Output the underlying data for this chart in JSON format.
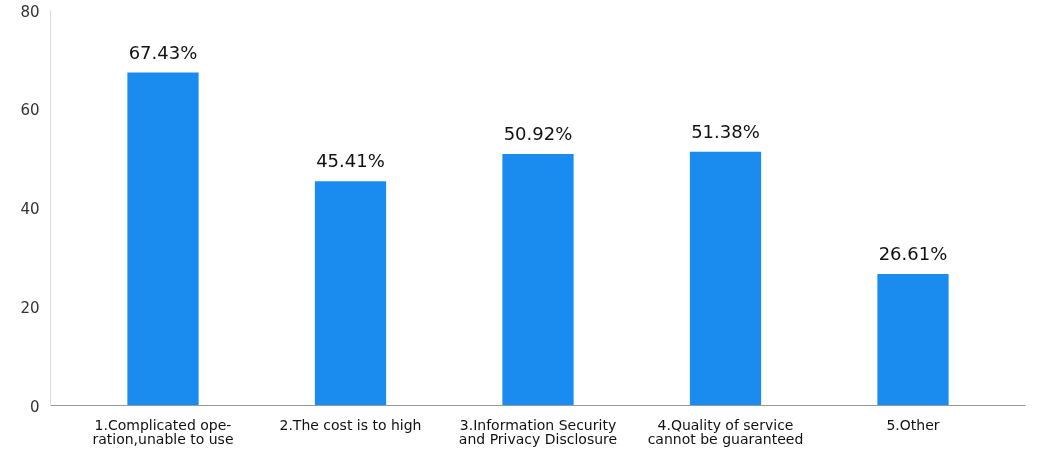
{
  "chart_data": {
    "type": "bar",
    "categories": [
      "1.Complicated ope-\nration,unable to use",
      "2.The cost is to high",
      "3.Information Security\nand Privacy Disclosure",
      "4.Quality of service\ncannot be guaranteed",
      "5.Other"
    ],
    "values": [
      67.43,
      45.41,
      50.92,
      51.38,
      26.61
    ],
    "value_labels": [
      "67.43%",
      "45.41%",
      "50.92%",
      "51.38%",
      "26.61%"
    ],
    "color": "#1a8cf0",
    "ylim": [
      0,
      80
    ],
    "yticks": [
      0,
      20,
      40,
      60,
      80
    ],
    "grid": false
  }
}
